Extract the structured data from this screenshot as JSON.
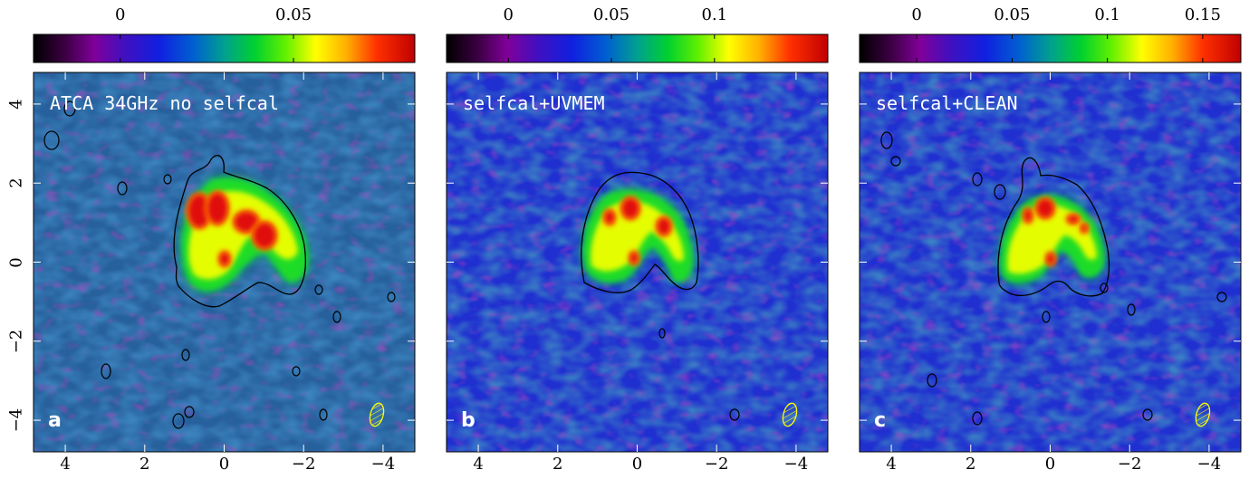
{
  "panels": [
    {
      "letter": "a",
      "title": "ATCA 34GHz no selfcal",
      "colorbar_ticks": [
        "0",
        "0.05"
      ],
      "colorbar_values": [
        0,
        0.05
      ],
      "colorbar_range": [
        -0.025,
        0.085
      ],
      "x_ticks": [
        "4",
        "2",
        "0",
        "−2",
        "−4"
      ],
      "y_ticks": [
        "4",
        "2",
        "0",
        "−2",
        "−4"
      ]
    },
    {
      "letter": "b",
      "title": "selfcal+UVMEM",
      "colorbar_ticks": [
        "0",
        "0.05",
        "0.1"
      ],
      "colorbar_values": [
        0,
        0.05,
        0.1
      ],
      "colorbar_range": [
        -0.03,
        0.155
      ],
      "x_ticks": [
        "4",
        "2",
        "0",
        "−2",
        "−4"
      ],
      "y_ticks": []
    },
    {
      "letter": "c",
      "title": "selfcal+CLEAN",
      "colorbar_ticks": [
        "0",
        "0.05",
        "0.1",
        "0.15"
      ],
      "colorbar_values": [
        0,
        0.05,
        0.1,
        0.15
      ],
      "colorbar_range": [
        -0.03,
        0.17
      ],
      "x_ticks": [
        "4",
        "2",
        "0",
        "−2",
        "−4"
      ],
      "y_ticks": []
    }
  ],
  "colors": {
    "background": "#1f2fd0",
    "contour": "#000000",
    "beam": "#ffff00",
    "frame": "#000000"
  },
  "icons": {
    "beam": "hatched-ellipse"
  }
}
